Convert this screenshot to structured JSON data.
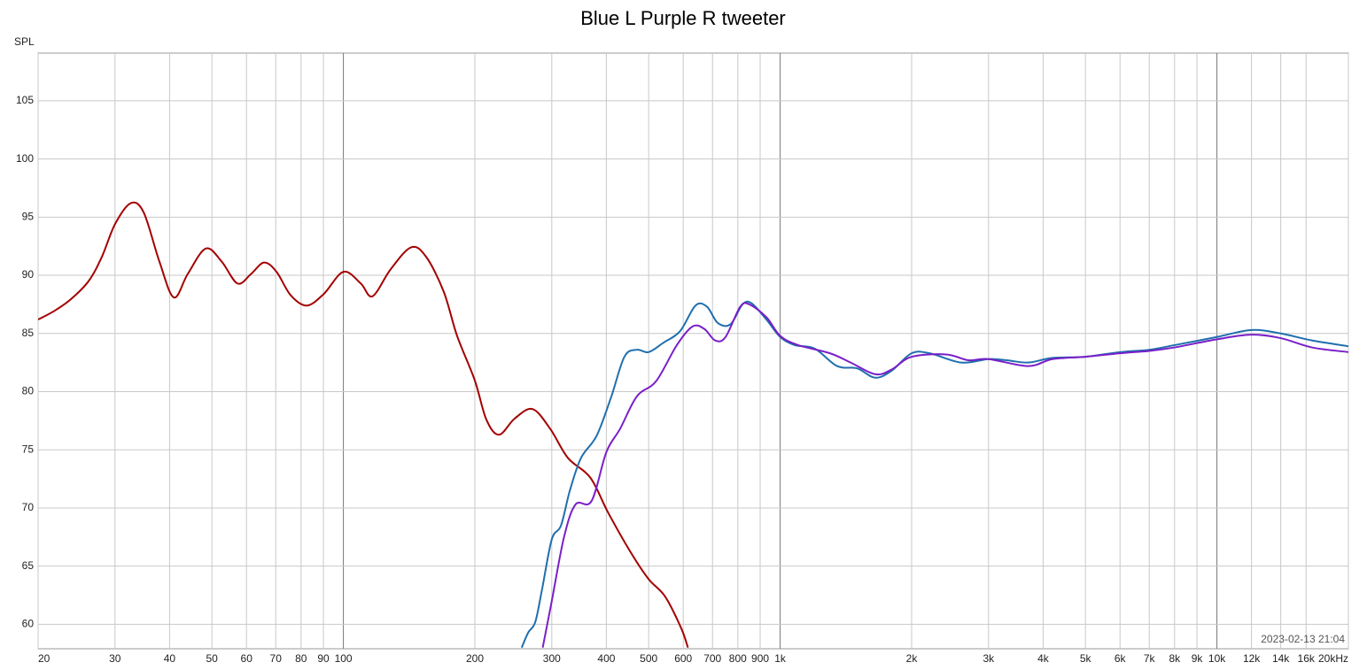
{
  "chart_data": {
    "type": "line",
    "title": "Blue L Purple R tweeter",
    "y_label": "SPL",
    "timestamp": "2023-02-13 21:04",
    "log_x": true,
    "grid": true,
    "xlim": [
      20,
      20000
    ],
    "ylim": [
      57.9,
      109.1
    ],
    "xticks": [
      20,
      30,
      40,
      50,
      60,
      70,
      80,
      90,
      100,
      200,
      300,
      400,
      500,
      600,
      700,
      800,
      900,
      {
        "value": 1000,
        "label": "1k"
      },
      {
        "value": 2000,
        "label": "2k"
      },
      {
        "value": 3000,
        "label": "3k"
      },
      {
        "value": 4000,
        "label": "4k"
      },
      {
        "value": 5000,
        "label": "5k"
      },
      {
        "value": 6000,
        "label": "6k"
      },
      {
        "value": 7000,
        "label": "7k"
      },
      {
        "value": 8000,
        "label": "8k"
      },
      {
        "value": 9000,
        "label": "9k"
      },
      {
        "value": 10000,
        "label": "10k"
      },
      {
        "value": 12000,
        "label": "12k"
      },
      {
        "value": 14000,
        "label": "14k"
      },
      {
        "value": 16000,
        "label": "16k"
      },
      {
        "value": 20000,
        "label": "20kHz"
      }
    ],
    "yticks": [
      60,
      65,
      70,
      75,
      80,
      85,
      90,
      95,
      100,
      105
    ],
    "series": [
      {
        "color": "#a30000",
        "x": [
          20,
          21.7,
          23.7,
          26.1,
          28,
          30,
          32.6,
          34.9,
          37.9,
          40.9,
          44,
          48.4,
          52.6,
          57.2,
          61.4,
          65.8,
          70.3,
          75.7,
          82.4,
          90.2,
          100,
          109.6,
          116.6,
          128.2,
          142.8,
          154.6,
          169.7,
          182.1,
          199.8,
          212.5,
          227.1,
          246.9,
          271.1,
          297.6,
          326.7,
          367.7,
          403.8,
          454.6,
          499.5,
          545,
          593,
          615
        ],
        "values": [
          86.2,
          86.9,
          87.9,
          89.5,
          91.6,
          94.4,
          96.2,
          95.4,
          91.2,
          88.1,
          90.1,
          92.3,
          91.2,
          89.3,
          90.1,
          91.1,
          90.3,
          88.3,
          87.4,
          88.4,
          90.3,
          89.3,
          88.2,
          90.5,
          92.4,
          91.6,
          88.6,
          84.8,
          81.0,
          77.6,
          76.3,
          77.7,
          78.5,
          76.8,
          74.3,
          72.6,
          69.6,
          66.2,
          63.9,
          62.4,
          59.7,
          58.0
        ]
      },
      {
        "color": "#1f6fae",
        "x": [
          256,
          265,
          275,
          285,
          300,
          315,
          330,
          350,
          380,
          410,
          440,
          470,
          500,
          540,
          590,
          640,
          680,
          720,
          770,
          820,
          860,
          930,
          1000,
          1080,
          1200,
          1350,
          1500,
          1650,
          1800,
          2000,
          2200,
          2600,
          3000,
          3300,
          3700,
          4200,
          5000,
          6000,
          7000,
          8000,
          10000,
          12000,
          14000,
          16500,
          20000
        ],
        "values": [
          58.0,
          59.3,
          60.2,
          63.0,
          67.3,
          68.5,
          71.5,
          74.3,
          76.2,
          79.5,
          83.0,
          83.6,
          83.4,
          84.2,
          85.2,
          87.4,
          87.3,
          85.9,
          85.8,
          87.5,
          87.6,
          86.2,
          84.7,
          84.0,
          83.7,
          82.2,
          82.0,
          81.2,
          81.8,
          83.3,
          83.3,
          82.5,
          82.8,
          82.7,
          82.5,
          82.9,
          83.0,
          83.4,
          83.6,
          84.0,
          84.7,
          85.3,
          85.0,
          84.4,
          83.9
        ]
      },
      {
        "color": "#7a1fc8",
        "x": [
          286,
          300,
          320,
          340,
          370,
          400,
          430,
          470,
          520,
          580,
          630,
          670,
          710,
          750,
          810,
          850,
          930,
          1000,
          1100,
          1300,
          1450,
          1650,
          1800,
          2000,
          2400,
          2700,
          3000,
          3700,
          4200,
          5000,
          6000,
          7000,
          8000,
          10000,
          12000,
          14000,
          16500,
          20000
        ],
        "values": [
          58.0,
          62.0,
          67.5,
          70.3,
          70.6,
          74.8,
          76.8,
          79.6,
          80.9,
          84.0,
          85.6,
          85.4,
          84.4,
          84.7,
          87.3,
          87.5,
          86.4,
          84.8,
          84.0,
          83.3,
          82.5,
          81.5,
          81.9,
          83.0,
          83.2,
          82.7,
          82.8,
          82.2,
          82.8,
          83.0,
          83.3,
          83.5,
          83.8,
          84.5,
          84.9,
          84.6,
          83.8,
          83.4
        ]
      }
    ]
  }
}
